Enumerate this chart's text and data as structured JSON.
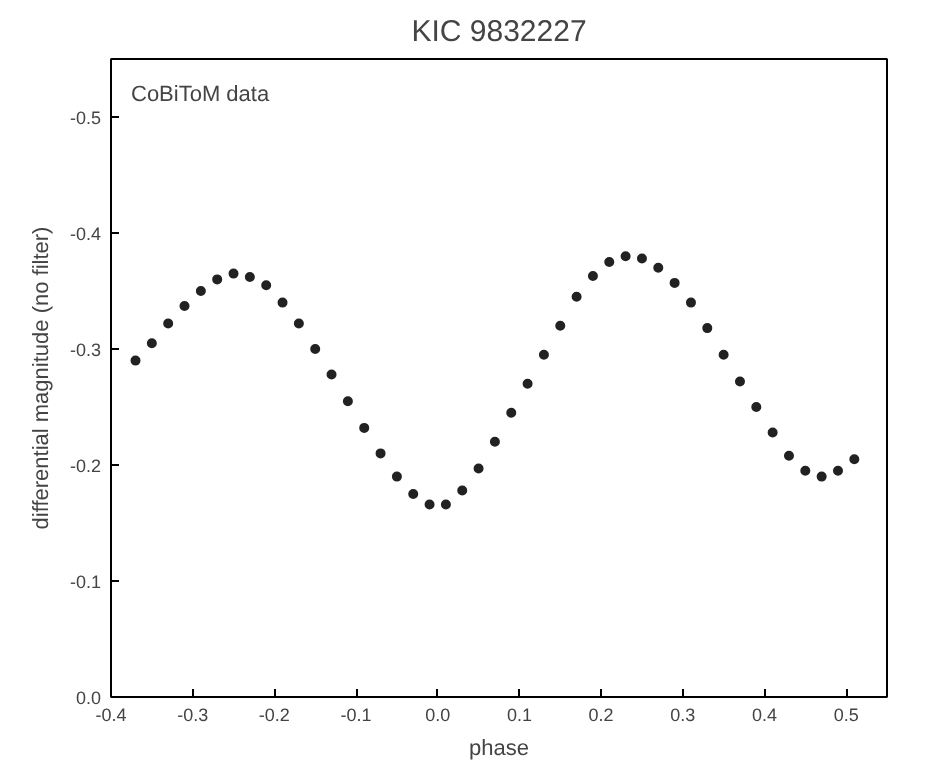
{
  "chart_data": {
    "type": "scatter",
    "title": "KIC 9832227",
    "xlabel": "phase",
    "ylabel": "differential magnitude (no filter)",
    "annotations": [
      "CoBiToM data"
    ],
    "x": [
      -0.37,
      -0.35,
      -0.33,
      -0.31,
      -0.29,
      -0.27,
      -0.25,
      -0.23,
      -0.21,
      -0.19,
      -0.17,
      -0.15,
      -0.13,
      -0.11,
      -0.09,
      -0.07,
      -0.05,
      -0.03,
      -0.01,
      0.01,
      0.03,
      0.05,
      0.07,
      0.09,
      0.11,
      0.13,
      0.15,
      0.17,
      0.19,
      0.21,
      0.23,
      0.25,
      0.27,
      0.29,
      0.31,
      0.33,
      0.35,
      0.37,
      0.39,
      0.41,
      0.43,
      0.45,
      0.47,
      0.49,
      0.51
    ],
    "series": [
      {
        "color": "#222222",
        "values": [
          -0.29,
          -0.305,
          -0.322,
          -0.337,
          -0.35,
          -0.36,
          -0.365,
          -0.362,
          -0.355,
          -0.34,
          -0.322,
          -0.3,
          -0.278,
          -0.255,
          -0.232,
          -0.21,
          -0.19,
          -0.175,
          -0.166,
          -0.166,
          -0.178,
          -0.197,
          -0.22,
          -0.245,
          -0.27,
          -0.295,
          -0.32,
          -0.345,
          -0.363,
          -0.375,
          -0.38,
          -0.378,
          -0.37,
          -0.357,
          -0.34,
          -0.318,
          -0.295,
          -0.272,
          -0.25,
          -0.228,
          -0.208,
          -0.195,
          -0.19,
          -0.195,
          -0.205
        ]
      }
    ],
    "xlim": [
      -0.4,
      0.55
    ],
    "ylim": [
      0,
      -0.55
    ],
    "xticks": [
      -0.4,
      -0.3,
      -0.2,
      -0.1,
      {
        "value": 0,
        "label": "0.0"
      },
      0.1,
      0.2,
      0.3,
      0.4,
      0.5
    ],
    "yticks": [
      {
        "value": 0,
        "label": "0.0"
      },
      -0.1,
      -0.2,
      -0.3,
      -0.4,
      -0.5
    ],
    "grid": false,
    "marker": "circle"
  }
}
